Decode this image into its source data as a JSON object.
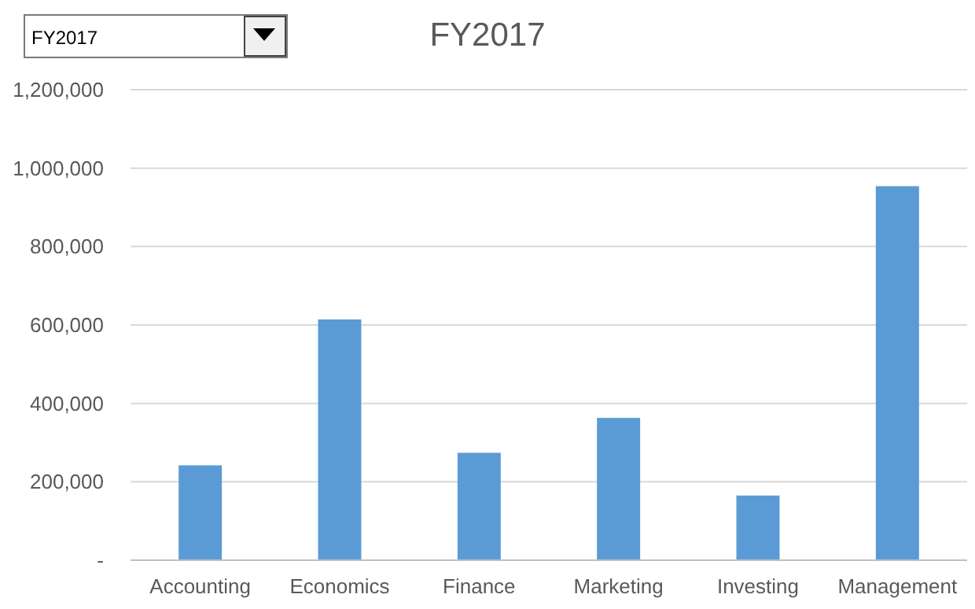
{
  "chart_data": {
    "type": "bar",
    "title": "FY2017",
    "categories": [
      "Accounting",
      "Economics",
      "Finance",
      "Marketing",
      "Investing",
      "Management"
    ],
    "values": [
      242000,
      614000,
      274000,
      363000,
      165000,
      954000
    ],
    "color": "#5b9bd5",
    "ylim": [
      0,
      1200000
    ],
    "yticks": [
      {
        "value": 0,
        "label": "-"
      },
      {
        "value": 200000,
        "label": "200,000"
      },
      {
        "value": 400000,
        "label": "400,000"
      },
      {
        "value": 600000,
        "label": "600,000"
      },
      {
        "value": 800000,
        "label": "800,000"
      },
      {
        "value": 1000000,
        "label": "1,000,000"
      },
      {
        "value": 1200000,
        "label": "1,200,000"
      }
    ],
    "grid": "y",
    "annotations": [
      "FY2017"
    ]
  }
}
